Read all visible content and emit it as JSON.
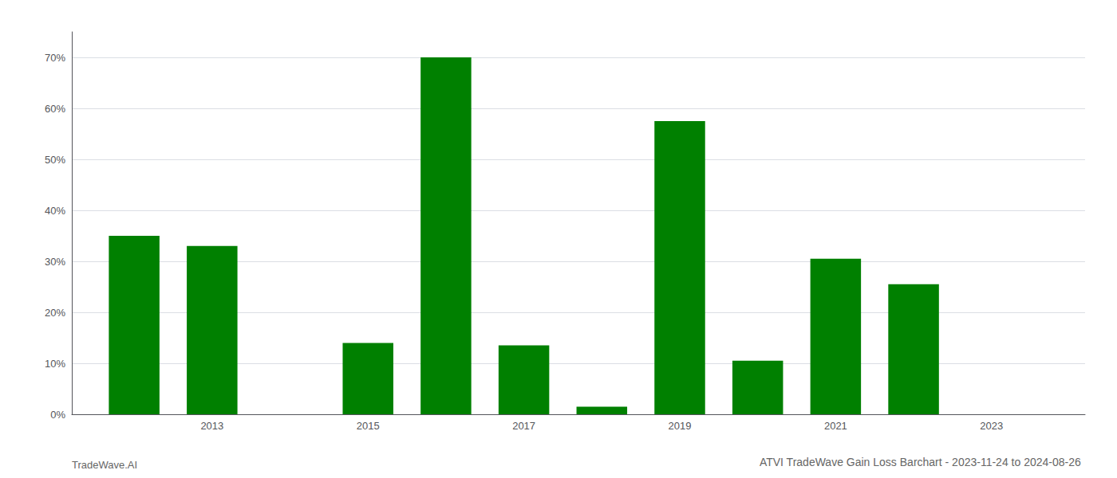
{
  "chart_data": {
    "type": "bar",
    "title": "ATVI TradeWave Gain Loss Barchart - 2023-11-24 to 2024-08-26",
    "annotations": [
      "TradeWave.AI"
    ],
    "x": [
      2012,
      2013,
      2015,
      2016,
      2017,
      2018,
      2019,
      2020,
      2021,
      2022
    ],
    "values": [
      0.35,
      0.33,
      0.14,
      0.7,
      0.135,
      0.015,
      0.575,
      0.105,
      0.305,
      0.255
    ],
    "color": "#008000",
    "xlim": [
      2011.2,
      2024.2
    ],
    "xticks": [
      2013,
      2015,
      2017,
      2019,
      2021,
      2023
    ],
    "ylim": [
      0,
      0.75
    ],
    "yticks": [
      {
        "value": 0.0,
        "label": "0%"
      },
      {
        "value": 0.1,
        "label": "10%"
      },
      {
        "value": 0.2,
        "label": "20%"
      },
      {
        "value": 0.3,
        "label": "30%"
      },
      {
        "value": 0.4,
        "label": "40%"
      },
      {
        "value": 0.5,
        "label": "50%"
      },
      {
        "value": 0.6,
        "label": "60%"
      },
      {
        "value": 0.7,
        "label": "70%"
      }
    ],
    "grid": true
  }
}
